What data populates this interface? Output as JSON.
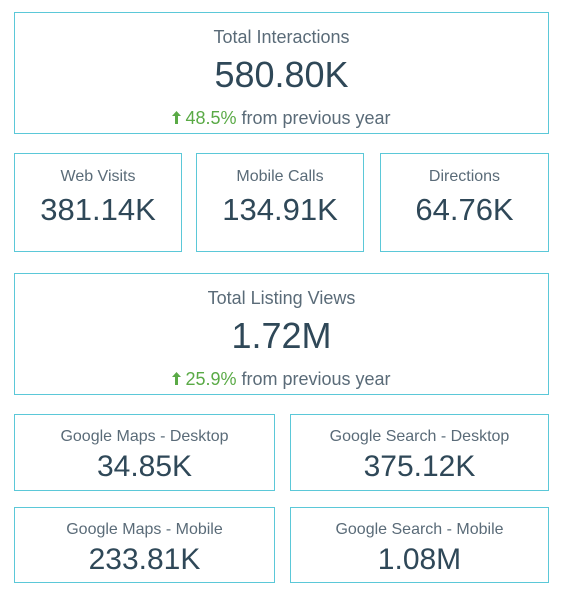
{
  "colors": {
    "border": "#5bc8d8",
    "value_text": "#2f4858",
    "label_text": "#5a6b78",
    "positive": "#5aaa46"
  },
  "total_interactions": {
    "label": "Total Interactions",
    "value": "580.80K",
    "change_pct": "48.5%",
    "change_suffix": "from previous year",
    "change_icon": "up-arrow-icon"
  },
  "interaction_breakdown": [
    {
      "label": "Web Visits",
      "value": "381.14K"
    },
    {
      "label": "Mobile Calls",
      "value": "134.91K"
    },
    {
      "label": "Directions",
      "value": "64.76K"
    }
  ],
  "total_listing_views": {
    "label": "Total Listing Views",
    "value": "1.72M",
    "change_pct": "25.9%",
    "change_suffix": "from previous year",
    "change_icon": "up-arrow-icon"
  },
  "listing_breakdown": [
    {
      "label": "Google Maps - Desktop",
      "value": "34.85K"
    },
    {
      "label": "Google Search - Desktop",
      "value": "375.12K"
    },
    {
      "label": "Google Maps - Mobile",
      "value": "233.81K"
    },
    {
      "label": "Google Search - Mobile",
      "value": "1.08M"
    }
  ]
}
